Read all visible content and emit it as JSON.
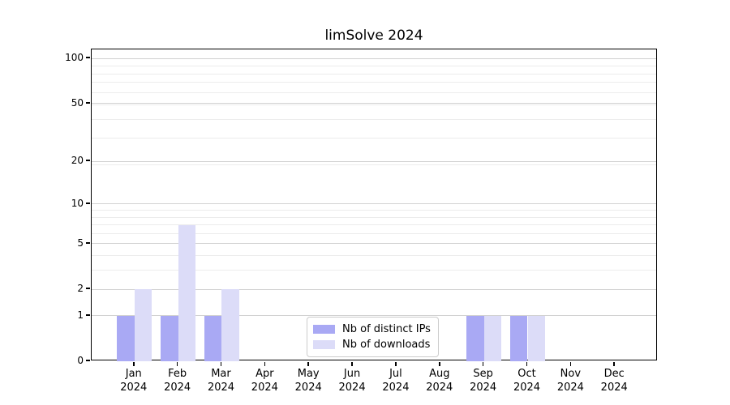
{
  "title": "limSolve 2024",
  "chart_data": {
    "type": "bar",
    "title": "limSolve 2024",
    "categories": [
      "Jan",
      "Feb",
      "Mar",
      "Apr",
      "May",
      "Jun",
      "Jul",
      "Aug",
      "Sep",
      "Oct",
      "Nov",
      "Dec"
    ],
    "category_year": "2024",
    "series": [
      {
        "name": "Nb of distinct IPs",
        "color": "#a9a9f4",
        "values": [
          1,
          1,
          1,
          0,
          0,
          0,
          0,
          0,
          1,
          1,
          0,
          0
        ]
      },
      {
        "name": "Nb of downloads",
        "color": "#dcdcf8",
        "values": [
          2,
          7,
          2,
          0,
          0,
          0,
          0,
          0,
          1,
          1,
          0,
          0
        ]
      }
    ],
    "xlabel": "",
    "ylabel": "",
    "yscale": "log1p",
    "ylim": [
      0,
      115
    ],
    "y_ticks": [
      0,
      1,
      2,
      5,
      10,
      20,
      50,
      100
    ],
    "y_minor_gridlines": [
      3,
      4,
      6,
      7,
      8,
      9,
      19,
      29,
      39,
      49,
      59,
      69,
      79,
      89
    ],
    "grid": "horizontal",
    "legend_position": "lower center",
    "colors": {
      "spine": "#000000",
      "grid_major": "#d2d2d2",
      "grid_minor": "#ececec",
      "background": "#ffffff",
      "text": "#000000",
      "legend_border": "#cccccc"
    }
  }
}
